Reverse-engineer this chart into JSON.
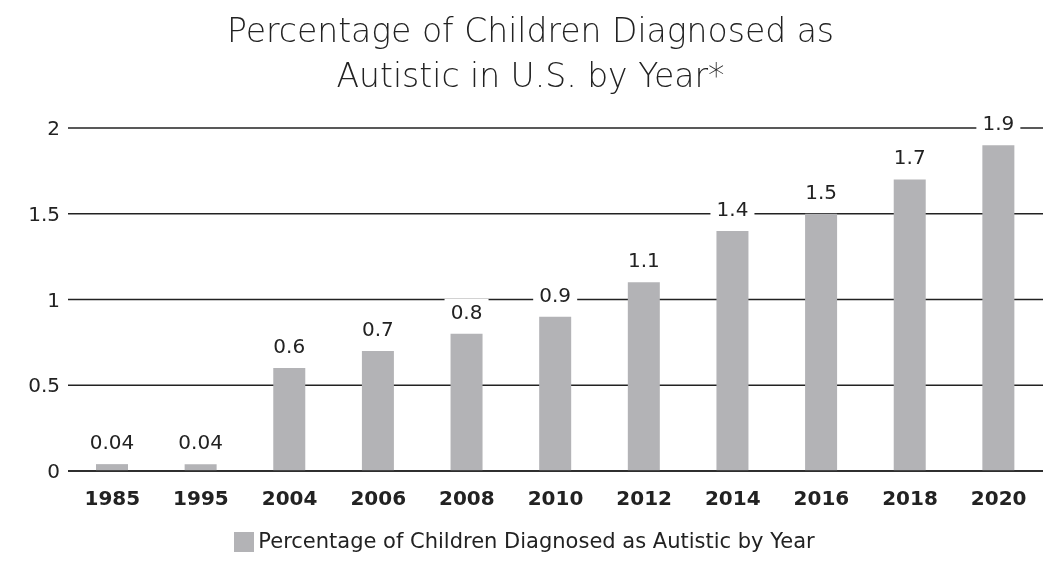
{
  "chart_data": {
    "type": "bar",
    "title": "Percentage of Children Diagnosed as Autistic in U.S. by Year*",
    "categories": [
      "1985",
      "1995",
      "2004",
      "2006",
      "2008",
      "2010",
      "2012",
      "2014",
      "2016",
      "2018",
      "2020"
    ],
    "series": [
      {
        "name": "Percentage of Children Diagnosed as Autistic by Year",
        "color": "#b3b3b6",
        "values": [
          0.04,
          0.04,
          0.6,
          0.7,
          0.8,
          0.9,
          1.1,
          1.4,
          1.5,
          1.7,
          1.9
        ]
      }
    ],
    "ylim": [
      0,
      2
    ],
    "yticks": [
      0,
      0.5,
      1,
      1.5,
      2
    ],
    "grid": "y",
    "legend": "bottom",
    "data_labels": true
  }
}
